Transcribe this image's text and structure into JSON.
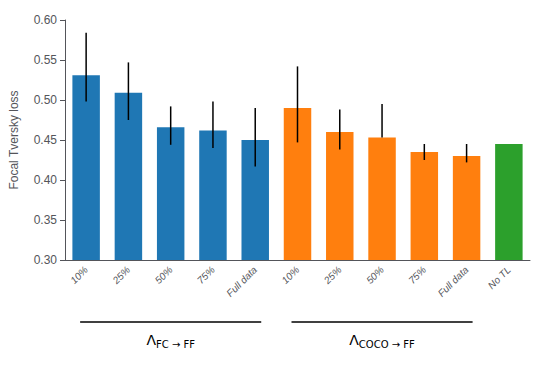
{
  "chart_data": {
    "type": "bar",
    "categories": [
      "10%",
      "25%",
      "50%",
      "75%",
      "Full data",
      "10%",
      "25%",
      "50%",
      "75%",
      "Full data",
      "No TL"
    ],
    "values": [
      0.531,
      0.509,
      0.466,
      0.462,
      0.45,
      0.49,
      0.46,
      0.453,
      0.435,
      0.43,
      0.445
    ],
    "errors_upper": [
      0.053,
      0.038,
      0.026,
      0.036,
      0.04,
      0.052,
      0.028,
      0.042,
      0.01,
      0.015,
      0.0
    ],
    "errors_lower": [
      0.033,
      0.034,
      0.022,
      0.022,
      0.033,
      0.043,
      0.022,
      0.0,
      0.01,
      0.008,
      0.0
    ],
    "colors": [
      "#1f77b4",
      "#1f77b4",
      "#1f77b4",
      "#1f77b4",
      "#1f77b4",
      "#ff7f0e",
      "#ff7f0e",
      "#ff7f0e",
      "#ff7f0e",
      "#ff7f0e",
      "#2ca02c"
    ],
    "ylabel": "Focal Tversky loss",
    "ylim": [
      0.3,
      0.6
    ],
    "yticks": [
      {
        "value": 0.3,
        "label": "0.30"
      },
      0.35,
      {
        "value": 0.4,
        "label": "0.40"
      },
      0.45,
      {
        "value": 0.5,
        "label": "0.50"
      },
      0.55,
      {
        "value": 0.6,
        "label": "0.60"
      }
    ],
    "grid": false,
    "annotations": [
      {
        "text": "ΛFC → FF",
        "from": 0,
        "to": 4
      },
      {
        "text": "ΛCOCO → FF",
        "from": 5,
        "to": 9
      }
    ]
  }
}
